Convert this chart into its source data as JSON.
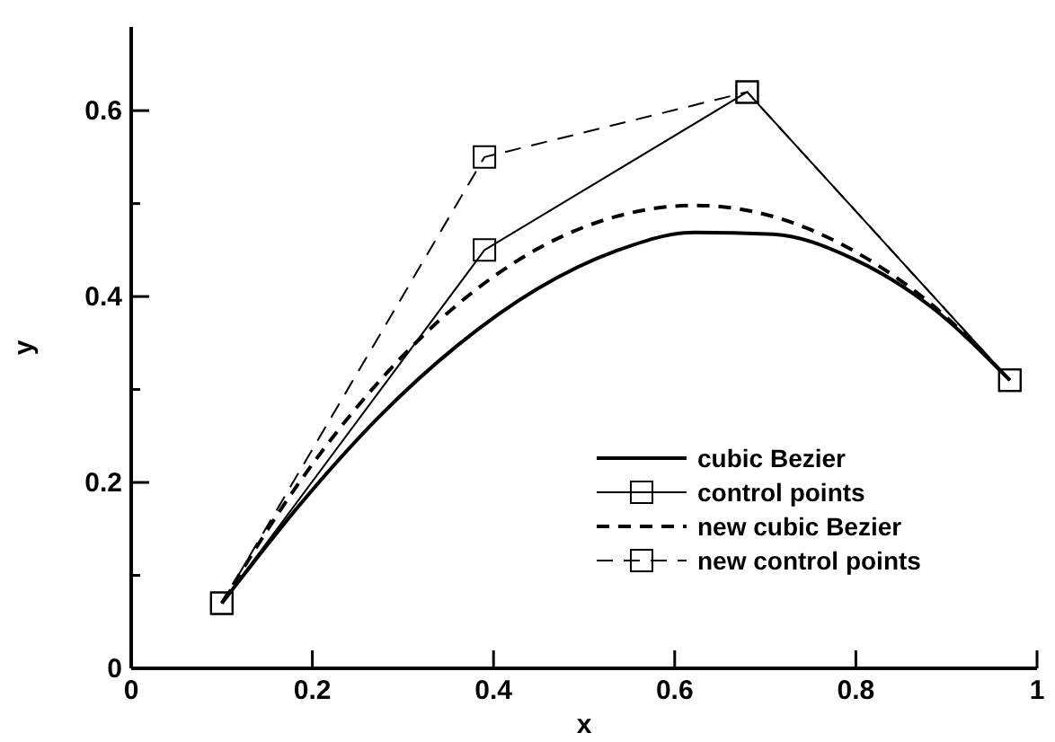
{
  "chart_data": {
    "type": "line",
    "xlabel": "x",
    "ylabel": "y",
    "xlim": [
      0,
      1
    ],
    "xticks": [
      0,
      0.2,
      0.4,
      0.6,
      0.8,
      1
    ],
    "ylim": [
      0,
      0.69
    ],
    "yticks": [
      0,
      {
        "value": 0.1,
        "label": null
      },
      0.2,
      {
        "value": 0.3,
        "label": null
      },
      0.4,
      {
        "value": 0.5,
        "label": null
      },
      0.6
    ],
    "grid": false,
    "legend": "bottom right",
    "series": [
      {
        "name": "cubic Bezier",
        "color": "#000000",
        "line_style": "solid",
        "marker": "none",
        "x": [
          0.1,
          0.187,
          0.274,
          0.361,
          0.448,
          0.535,
          0.622,
          0.709,
          0.796,
          0.883,
          0.97
        ],
        "values": [
          0.07,
          0.177,
          0.271,
          0.348,
          0.408,
          0.449,
          0.469,
          0.467,
          0.441,
          0.389,
          0.31
        ]
      },
      {
        "name": "control points",
        "color": "#000000",
        "line_style": "solid",
        "marker": "square",
        "x": [
          0.1,
          0.39,
          0.68,
          0.97
        ],
        "values": [
          0.07,
          0.45,
          0.62,
          0.31
        ]
      },
      {
        "name": "new cubic Bezier",
        "color": "#000000",
        "line_style": "dashed",
        "marker": "none",
        "x": [
          0.1,
          0.187,
          0.274,
          0.361,
          0.448,
          0.535,
          0.622,
          0.709,
          0.796,
          0.883,
          0.97
        ],
        "values": [
          0.07,
          0.202,
          0.309,
          0.392,
          0.451,
          0.486,
          0.498,
          0.486,
          0.45,
          0.392,
          0.31
        ]
      },
      {
        "name": "new control points",
        "color": "#000000",
        "line_style": "dashed",
        "marker": "square",
        "x": [
          0.1,
          0.39,
          0.68,
          0.97
        ],
        "values": [
          0.07,
          0.55,
          0.62,
          0.31
        ]
      }
    ]
  }
}
